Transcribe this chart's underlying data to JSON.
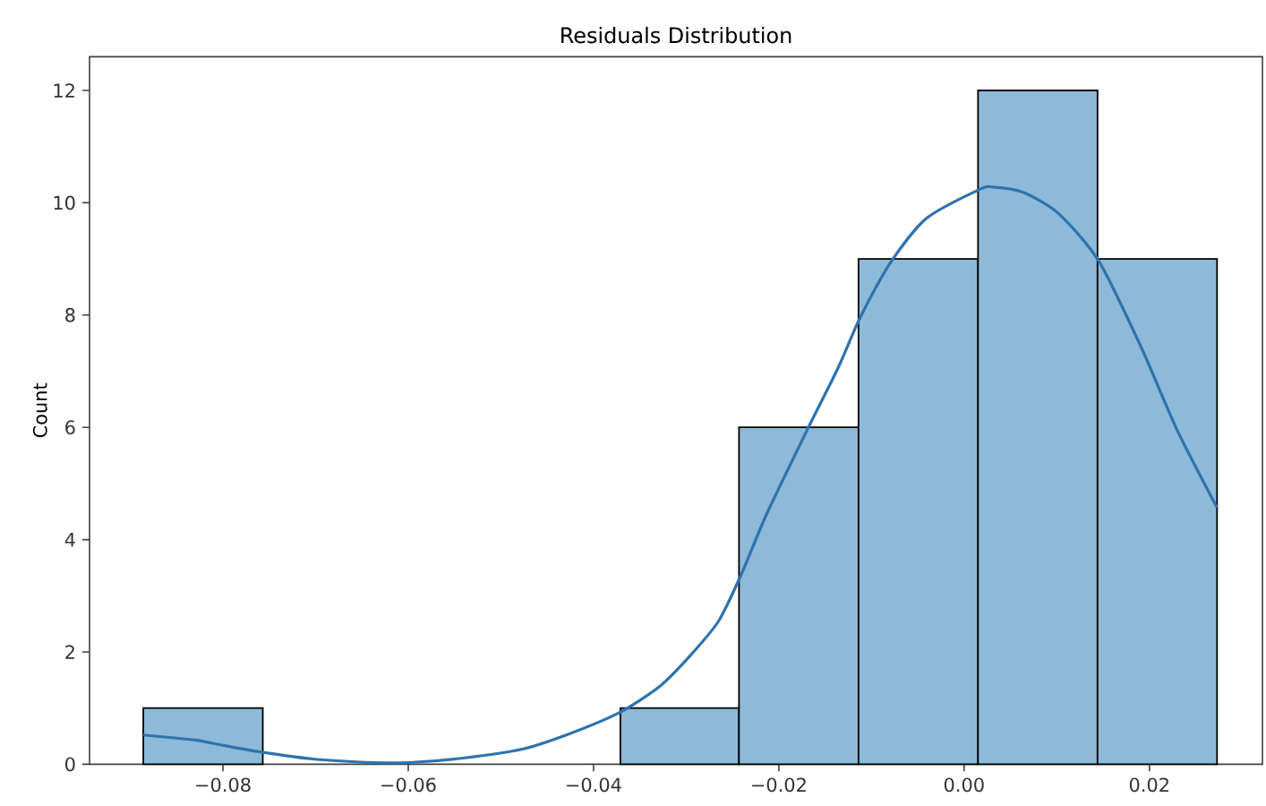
{
  "chart_data": {
    "type": "histogram",
    "title": "Residuals Distribution",
    "ylabel": "Count",
    "series": [
      {
        "color": "#8ebad9",
        "bins": [
          -0.0886,
          -0.0757,
          -0.0371,
          -0.0243,
          -0.0114,
          0.0015,
          0.0144,
          0.0273
        ],
        "values": [
          1,
          0,
          1,
          6,
          9,
          12,
          9
        ]
      },
      {
        "type": "line",
        "color": "#2e73ad",
        "x": [
          -0.0886,
          -0.083,
          -0.0798,
          -0.0757,
          -0.0701,
          -0.0637,
          -0.0599,
          -0.0541,
          -0.0477,
          -0.0425,
          -0.0371,
          -0.0329,
          -0.0297,
          -0.0265,
          -0.024,
          -0.0213,
          -0.0168,
          -0.0136,
          -0.0112,
          -0.0078,
          -0.004,
          0.0017,
          0.0031,
          0.0063,
          0.0101,
          0.0145,
          0.0191,
          0.023,
          0.0273
        ],
        "values": [
          0.52,
          0.43,
          0.33,
          0.21,
          0.09,
          0.03,
          0.03,
          0.11,
          0.27,
          0.55,
          0.93,
          1.38,
          1.91,
          2.55,
          3.4,
          4.46,
          6.0,
          7.06,
          7.96,
          8.97,
          9.73,
          10.24,
          10.28,
          10.19,
          9.82,
          8.97,
          7.43,
          5.95,
          4.57
        ]
      }
    ],
    "xlim": [
      -0.0944,
      0.0322
    ],
    "ylim": [
      0,
      12.6
    ],
    "xticks": [
      {
        "value": -0.08,
        "label": "−0.08"
      },
      {
        "value": -0.06,
        "label": "−0.06"
      },
      {
        "value": -0.04,
        "label": "−0.04"
      },
      {
        "value": -0.02,
        "label": "−0.02"
      },
      {
        "value": 0,
        "label": "0.00"
      },
      0.02
    ],
    "yticks": [
      0,
      2,
      4,
      6,
      8,
      10,
      12
    ]
  }
}
